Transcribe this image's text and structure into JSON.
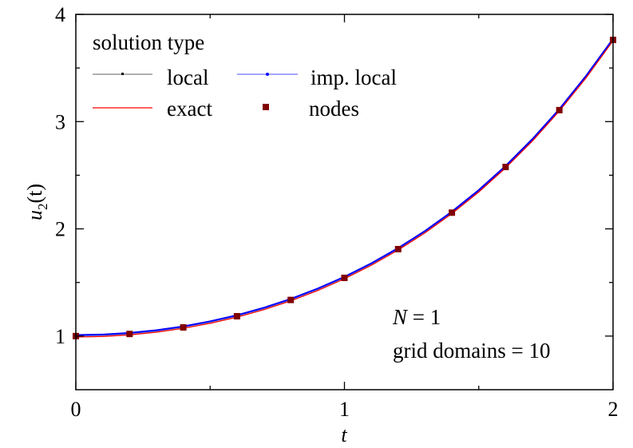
{
  "chart_data": {
    "type": "line",
    "xlabel": "t",
    "ylabel_main": "u",
    "ylabel_sub": "2",
    "ylabel_tail": "(t)",
    "xlim": [
      0,
      2
    ],
    "ylim": [
      0.5,
      4
    ],
    "xticks": [
      0,
      1,
      2
    ],
    "xtick_labels": [
      "0",
      "1",
      "2"
    ],
    "yticks": [
      1,
      2,
      3,
      4
    ],
    "ytick_labels": [
      "1",
      "2",
      "3",
      "4"
    ],
    "x_minor_ticks": [
      0.5,
      1.5
    ],
    "y_minor_ticks": [
      1.5,
      2.5,
      3.5
    ],
    "grid": false,
    "legend": {
      "title": "solution type",
      "placement": "top-left",
      "entries": [
        "local",
        "imp. local",
        "exact",
        "nodes"
      ]
    },
    "annotation": {
      "line1_var": "N",
      "line1_rest": " = 1",
      "line2": "grid domains = 10"
    },
    "series": [
      {
        "name": "local",
        "color": "#808080",
        "style": "line-with-small-markers"
      },
      {
        "name": "imp. local",
        "color": "#0000ff",
        "style": "line-with-small-markers"
      },
      {
        "name": "exact",
        "color": "#ff0000",
        "style": "line"
      },
      {
        "name": "nodes",
        "color": "#800000",
        "style": "square-markers",
        "x": [
          0,
          0.2,
          0.4,
          0.6,
          0.8,
          1.0,
          1.2,
          1.4,
          1.6,
          1.8,
          2.0
        ],
        "y": [
          1.0,
          1.02,
          1.081,
          1.185,
          1.337,
          1.543,
          1.811,
          2.151,
          2.577,
          3.107,
          3.762
        ]
      }
    ],
    "curve_x": [
      0,
      0.1,
      0.2,
      0.3,
      0.4,
      0.5,
      0.6,
      0.7,
      0.8,
      0.9,
      1.0,
      1.1,
      1.2,
      1.3,
      1.4,
      1.5,
      1.6,
      1.7,
      1.8,
      1.9,
      2.0
    ],
    "curve_y": [
      1.0,
      1.005,
      1.02,
      1.045,
      1.081,
      1.128,
      1.185,
      1.255,
      1.337,
      1.433,
      1.543,
      1.669,
      1.811,
      1.971,
      2.151,
      2.352,
      2.577,
      2.828,
      3.107,
      3.418,
      3.762
    ]
  }
}
